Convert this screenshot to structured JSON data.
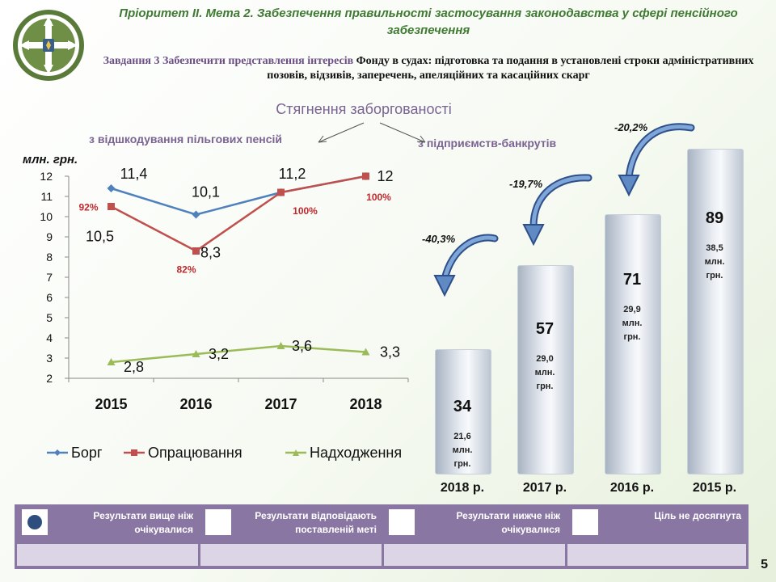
{
  "header": {
    "title": "Пріоритет  ІІ. Мета 2. Забезпечення  правильності  застосування  законодавства  у сфері пенсійного  забезпечення",
    "task_prefix": "Завдання 3 Забезпечити представлення інтересів",
    "task_text": " Фонду в судах:  підготовка та подання в установлені строки адміністративних  позовів, відзивів, заперечень, апеляційних та касаційних скарг"
  },
  "labels": {
    "bars_title": "Стягнення заборгованості",
    "left_label": "з відшкодування пільгових пенсій",
    "right_label": "з підприємств-банкрутів"
  },
  "chart_data": [
    {
      "type": "line",
      "ylabel": "млн. грн.",
      "ylim": [
        2,
        12
      ],
      "yticks": [
        "2",
        "3",
        "4",
        "5",
        "6",
        "7",
        "8",
        "9",
        "10",
        "11",
        "12"
      ],
      "categories": [
        "2015",
        "2016",
        "2017",
        "2018"
      ],
      "legend_position": "bottom",
      "grid": false,
      "series": [
        {
          "name": "Борг",
          "values": [
            11.4,
            10.1,
            11.2,
            12
          ],
          "value_labels": [
            "11,4",
            "10,1",
            "11,2",
            "12"
          ],
          "color": "#4f81bd"
        },
        {
          "name": "Опрацювання",
          "values": [
            10.5,
            8.3,
            11.2,
            12
          ],
          "value_labels": [
            "10,5",
            "8,3",
            "",
            ""
          ],
          "percent_labels": [
            "92%",
            "82%",
            "100%",
            "100%"
          ],
          "color": "#c0504d"
        },
        {
          "name": "Надходження",
          "values": [
            2.8,
            3.2,
            3.6,
            3.3
          ],
          "value_labels": [
            "2,8",
            "3,2",
            "3,6",
            "3,3"
          ],
          "color": "#9bbb59"
        }
      ]
    },
    {
      "type": "bar",
      "categories": [
        "2018 р.",
        "2017 р.",
        "2016 р.",
        "2015 р."
      ],
      "values": [
        34,
        57,
        71,
        89
      ],
      "value_labels": [
        "34",
        "57",
        "71",
        "89"
      ],
      "secondary_labels": [
        [
          "21,6",
          "млн.",
          "грн."
        ],
        [
          "29,0",
          "млн.",
          "грн."
        ],
        [
          "29,9",
          "млн.",
          "грн."
        ],
        [
          "38,5",
          "млн.",
          "грн."
        ]
      ],
      "change_labels": [
        "-40,3%",
        "-19,7%",
        "-20,2%"
      ]
    }
  ],
  "legend_table": {
    "items": [
      {
        "label_line1": "Результати вище ніж",
        "label_line2": "очікувалися",
        "marker": "circle"
      },
      {
        "label_line1": "Результати відповідають",
        "label_line2": "поставленій меті",
        "marker": "square"
      },
      {
        "label_line1": "Результати нижче ніж",
        "label_line2": "очікувалися",
        "marker": "square"
      },
      {
        "label_line1": "Ціль не досягнута",
        "label_line2": "",
        "marker": "square"
      }
    ],
    "circle_color": "#2e4e7e"
  },
  "page_number": "5"
}
